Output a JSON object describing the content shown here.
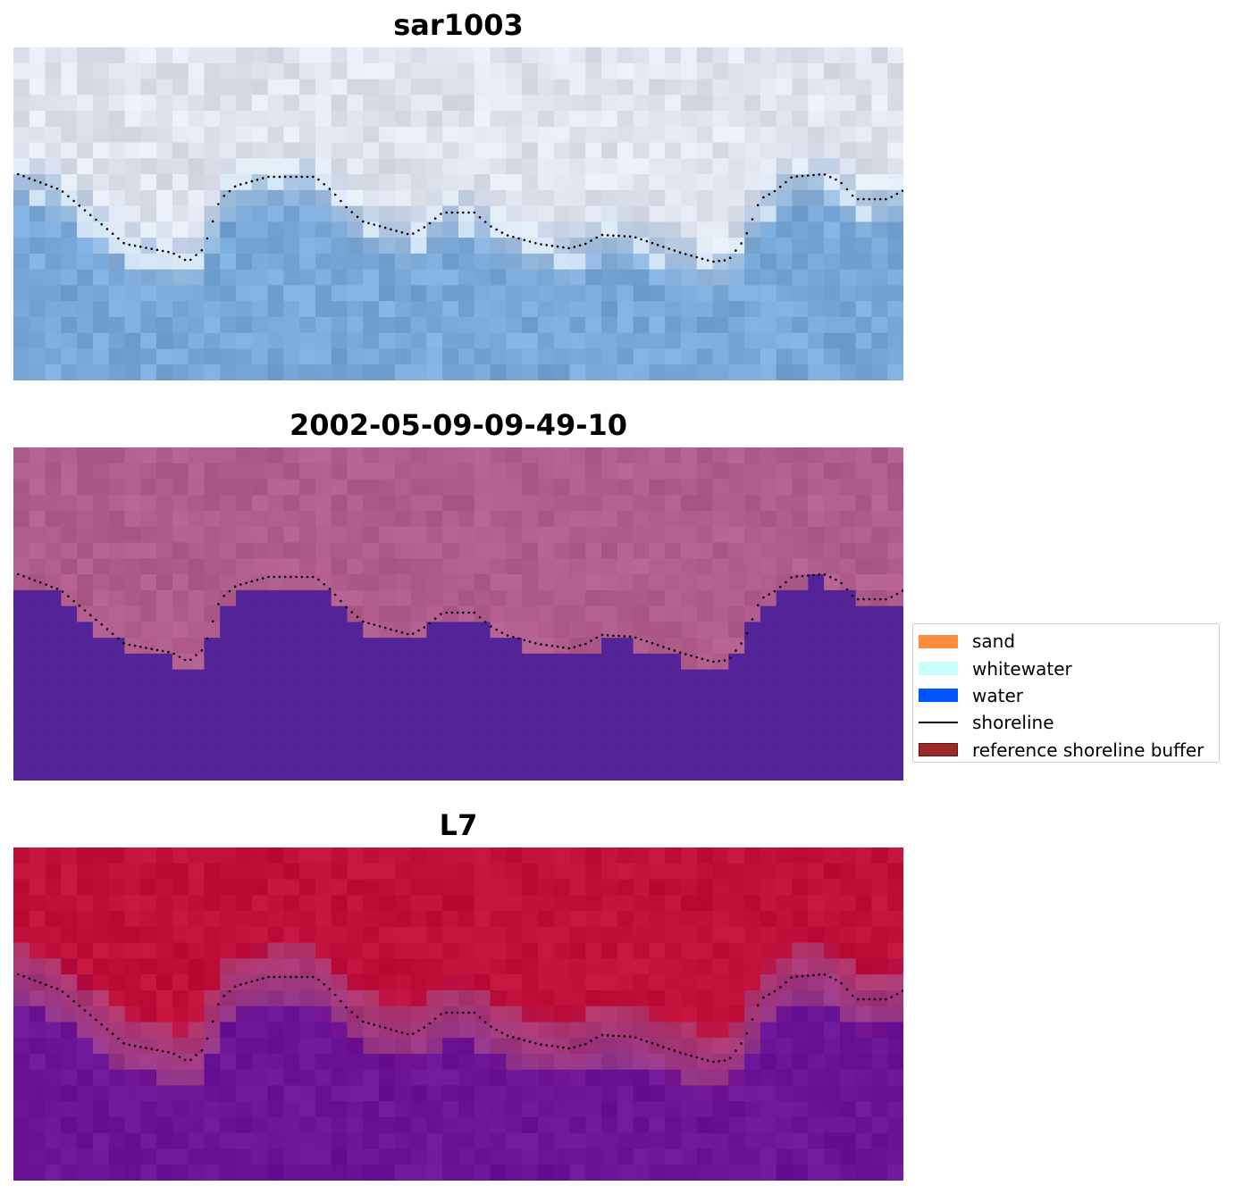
{
  "panels": [
    {
      "title": "sar1003",
      "style": "rgb"
    },
    {
      "title": "2002-05-09-09-49-10",
      "style": "classified"
    },
    {
      "title": "L7",
      "style": "index"
    }
  ],
  "legend": {
    "items": [
      {
        "label": "sand",
        "type": "patch",
        "color": "#ff8c3c"
      },
      {
        "label": "whitewater",
        "type": "patch",
        "color": "#c8fffa"
      },
      {
        "label": "water",
        "type": "patch",
        "color": "#0055ff"
      },
      {
        "label": "shoreline",
        "type": "line",
        "color": "#000000"
      },
      {
        "label": "reference shoreline buffer",
        "type": "patch",
        "color": "#9b2a2a",
        "edge": "#6b0f0f"
      }
    ]
  },
  "colors": {
    "rgb_water": "#78a8d8",
    "rgb_land": "#dfe3ee",
    "classified_land": "#b05c8d",
    "classified_water": "#532398",
    "index_land": "#c0103a",
    "index_water": "#6a1498"
  }
}
